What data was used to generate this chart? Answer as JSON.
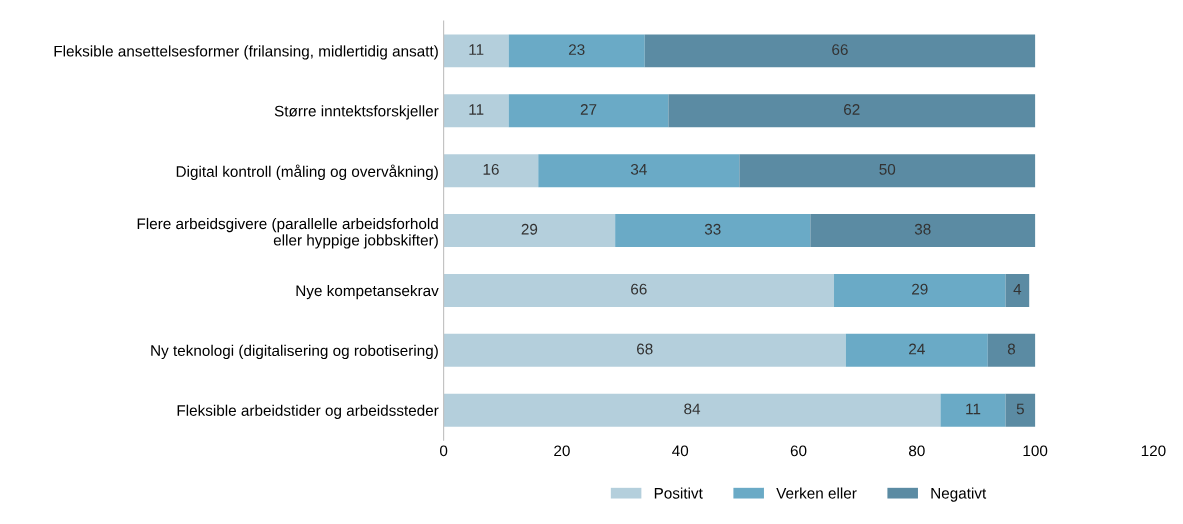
{
  "chart_data": {
    "type": "bar",
    "orientation": "horizontal",
    "stacked": true,
    "categories": [
      "Fleksible ansettelsesformer (frilansing, midlertidig ansatt)",
      "Større inntektsforskjeller",
      "Digital kontroll (måling og overvåkning)",
      "Flere arbeidsgivere (parallelle arbeidsforhold\neller hyppige jobbskifter)",
      "Nye kompetansekrav",
      "Ny teknologi (digitalisering og robotisering)",
      "Fleksible arbeidstider og arbeidssteder"
    ],
    "series": [
      {
        "name": "Positivt",
        "color": "#b4cfdc",
        "values": [
          11,
          11,
          16,
          29,
          66,
          68,
          84
        ]
      },
      {
        "name": "Verken eller",
        "color": "#6aaac6",
        "values": [
          23,
          27,
          34,
          33,
          29,
          24,
          11
        ]
      },
      {
        "name": "Negativt",
        "color": "#5b8ba3",
        "values": [
          66,
          62,
          50,
          38,
          4,
          8,
          5
        ]
      }
    ],
    "xlim": [
      0,
      120
    ],
    "xticks": [
      0,
      20,
      40,
      60,
      80,
      100,
      120
    ],
    "data_labels": true,
    "legend": "bottom",
    "grid": false
  }
}
